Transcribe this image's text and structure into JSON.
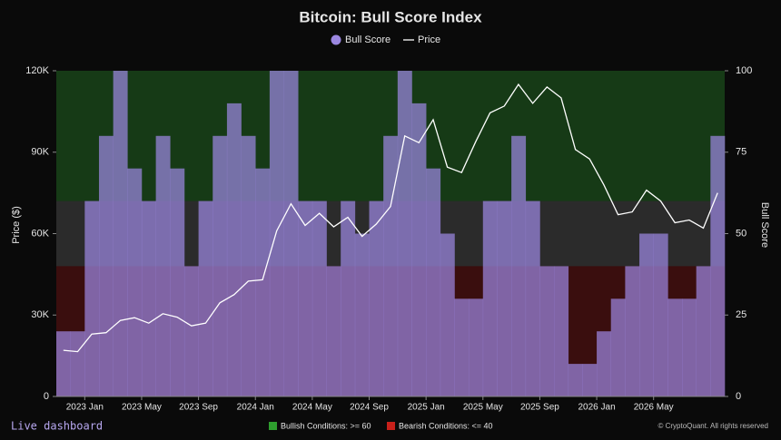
{
  "chart_data": {
    "type": "bull-score",
    "title": "Bitcoin: Bull Score Index",
    "x": [
      "2022-11",
      "2022-12",
      "2023-01",
      "2023-02",
      "2023-03",
      "2023-04",
      "2023-05",
      "2023-06",
      "2023-07",
      "2023-08",
      "2023-09",
      "2023-10",
      "2023-11",
      "2023-12",
      "2024-01",
      "2024-02",
      "2024-03",
      "2024-04",
      "2024-05",
      "2024-06",
      "2024-07",
      "2024-08",
      "2024-09",
      "2024-10",
      "2024-11",
      "2024-12",
      "2025-01",
      "2025-02",
      "2025-03",
      "2025-04",
      "2025-05",
      "2025-06",
      "2025-07",
      "2025-08",
      "2025-09",
      "2025-10",
      "2025-11",
      "2025-12",
      "2026-01",
      "2026-02",
      "2026-03",
      "2026-04",
      "2026-05",
      "2026-06",
      "2026-07",
      "2026-08",
      "2026-09"
    ],
    "series": [
      {
        "name": "Bull Score",
        "color": "#9b87e0",
        "axis": "y2",
        "values": [
          20,
          20,
          60,
          80,
          100,
          70,
          60,
          80,
          70,
          40,
          60,
          80,
          90,
          80,
          70,
          100,
          100,
          60,
          60,
          40,
          60,
          50,
          60,
          80,
          100,
          90,
          70,
          50,
          30,
          30,
          60,
          60,
          80,
          60,
          40,
          40,
          10,
          10,
          20,
          30,
          40,
          50,
          50,
          30,
          30,
          40,
          80
        ]
      },
      {
        "name": "Price",
        "color": "#ffffff",
        "values": [
          17000,
          16500,
          23000,
          23500,
          28000,
          29000,
          27000,
          30500,
          29200,
          26000,
          27000,
          34500,
          37500,
          42500,
          43000,
          61000,
          71000,
          63000,
          67500,
          62500,
          66000,
          59000,
          63500,
          70000,
          96000,
          93500,
          102000,
          84500,
          82500,
          94000,
          104500,
          107000,
          115000,
          108000,
          114000,
          110000,
          91000,
          87500,
          78000,
          67000,
          68000,
          76000,
          72000,
          64000,
          65000,
          62000,
          75000
        ]
      }
    ],
    "xlim": [
      "2022-11",
      "2026-10"
    ],
    "xticks": [
      {
        "value": "2023-01",
        "label": "2023 Jan"
      },
      {
        "value": "2023-05",
        "label": "2023 May"
      },
      {
        "value": "2023-09",
        "label": "2023 Sep"
      },
      {
        "value": "2024-01",
        "label": "2024 Jan"
      },
      {
        "value": "2024-05",
        "label": "2024 May"
      },
      {
        "value": "2024-09",
        "label": "2024 Sep"
      },
      {
        "value": "2025-01",
        "label": "2025 Jan"
      },
      {
        "value": "2025-05",
        "label": "2025 May"
      },
      {
        "value": "2025-09",
        "label": "2025 Sep"
      },
      {
        "value": "2026-01",
        "label": "2026 Jan"
      },
      {
        "value": "2026-05",
        "label": "2026 May"
      }
    ],
    "ylim": [
      0,
      120000
    ],
    "yticks": [
      0,
      {
        "value": 30000,
        "label": "30K"
      },
      {
        "value": 60000,
        "label": "60K"
      },
      {
        "value": 90000,
        "label": "90K"
      },
      {
        "value": 120000,
        "label": "120K"
      }
    ],
    "y2lim": [
      0,
      100
    ],
    "y2ticks": [
      0,
      25,
      50,
      75,
      100
    ],
    "ylabel": "Price ($)",
    "y2label": "Bull Score",
    "bands": [
      {
        "label": "Bullish Conditions: >= 60",
        "from": 60,
        "to": 100,
        "color": "#163a16",
        "legend_color": "#2e9e2e"
      },
      {
        "label": "Bearish Conditions: <= 40",
        "from": 0,
        "to": 40,
        "color": "#3a0e0e",
        "legend_color": "#c8201a"
      }
    ],
    "link": "Live dashboard",
    "credit": "© CryptoQuant. All rights reserved"
  }
}
